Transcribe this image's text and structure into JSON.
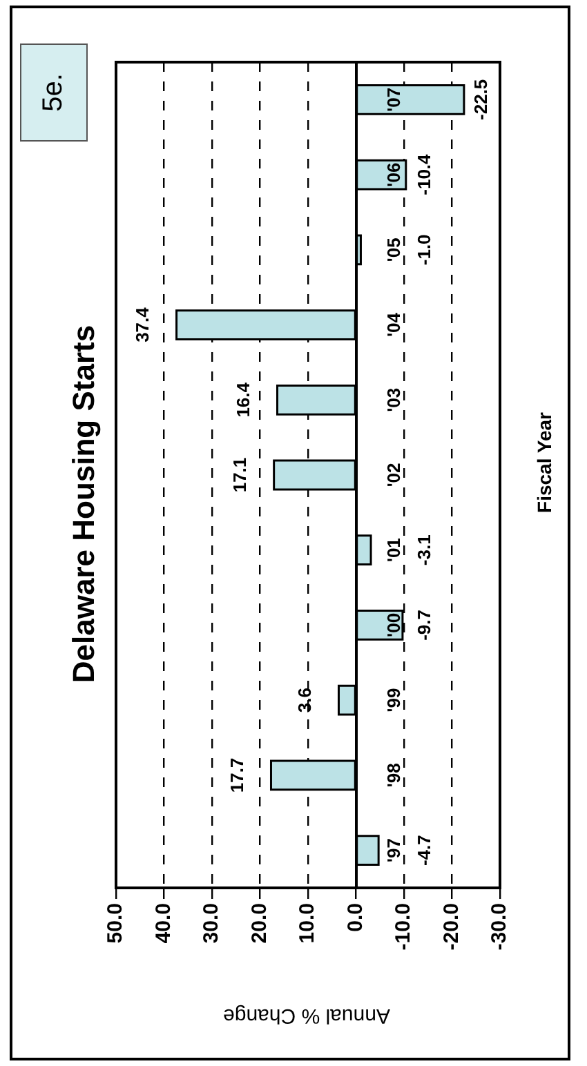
{
  "chart_data": {
    "type": "bar",
    "orientation": "horizontal",
    "title": "Delaware Housing Starts",
    "xlabel": "Annual % Change",
    "ylabel": "Fiscal Year",
    "annotations": [
      "5e."
    ],
    "categories": [
      "'07",
      "'06",
      "'05",
      "'04",
      "'03",
      "'02",
      "'01",
      "'00",
      "'99",
      "'98",
      "'97"
    ],
    "values": [
      -22.5,
      -10.4,
      -1.0,
      37.4,
      16.4,
      17.1,
      -3.1,
      -9.7,
      3.6,
      17.7,
      -4.7
    ],
    "value_labels": [
      "-22.5",
      "-10.4",
      "-1.0",
      "37.4",
      "16.4",
      "17.1",
      "-3.1",
      "-9.7",
      "3.6",
      "17.7",
      "-4.7"
    ],
    "color": "#bce2e6",
    "xlim": [
      50,
      -30
    ],
    "xticks": [
      {
        "value": 50,
        "label": "50.0"
      },
      {
        "value": 40,
        "label": "40.0"
      },
      {
        "value": 30,
        "label": "30.0"
      },
      {
        "value": 20,
        "label": "20.0"
      },
      {
        "value": 10,
        "label": "10.0"
      },
      {
        "value": 0,
        "label": "0.0"
      },
      {
        "value": -10,
        "label": "-10.0"
      },
      {
        "value": -20,
        "label": "-20.0"
      },
      {
        "value": -30,
        "label": "-30.0"
      }
    ],
    "grid": "x"
  }
}
